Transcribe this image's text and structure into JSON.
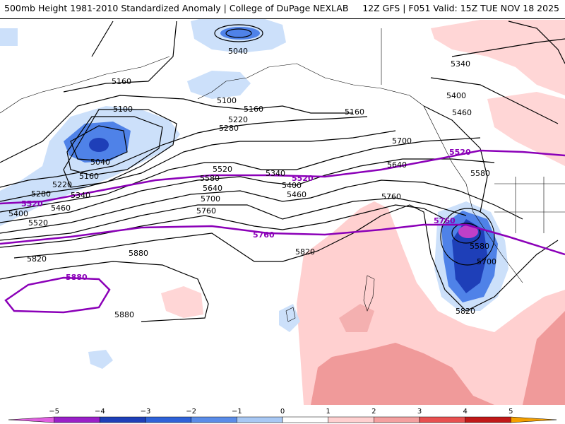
{
  "header": {
    "title": "500mb Height 1981-2010 Standardized Anomaly | College of DuPage NEXLAB",
    "run_info": "12Z GFS | F051 Valid: 15Z TUE NOV 18 2025"
  },
  "contour_labels": [
    "5040",
    "5100",
    "5160",
    "5160",
    "5040",
    "5160",
    "5220",
    "5280",
    "5340",
    "5400",
    "5460",
    "5520",
    "5580",
    "5640",
    "5700",
    "5760",
    "5820",
    "5880",
    "5100",
    "5160",
    "5220",
    "5280",
    "5340",
    "5400",
    "5460",
    "5520",
    "5580",
    "5640",
    "5700",
    "5760",
    "5820",
    "5880",
    "5580",
    "5700",
    "5820",
    "5400",
    "5460",
    "5340",
    "5280"
  ],
  "highlight_labels": [
    "5520",
    "5520",
    "5520",
    "5760",
    "5760",
    "5880"
  ],
  "legend": {
    "ticks": [
      "−5",
      "−4",
      "−3",
      "−2",
      "−1",
      "0",
      "1",
      "2",
      "3",
      "4",
      "5"
    ],
    "colors": [
      "#e060e0",
      "#9a20c8",
      "#1e3fb8",
      "#2e62d8",
      "#5a8ce8",
      "#a8c8f4",
      "#ffffff",
      "#ffd0d0",
      "#f4a0a0",
      "#e85050",
      "#c01818",
      "#f5a000"
    ]
  },
  "colors": {
    "contour": "#000000",
    "highlight_contour": "#8b00b8",
    "land_outline": "#000000"
  }
}
